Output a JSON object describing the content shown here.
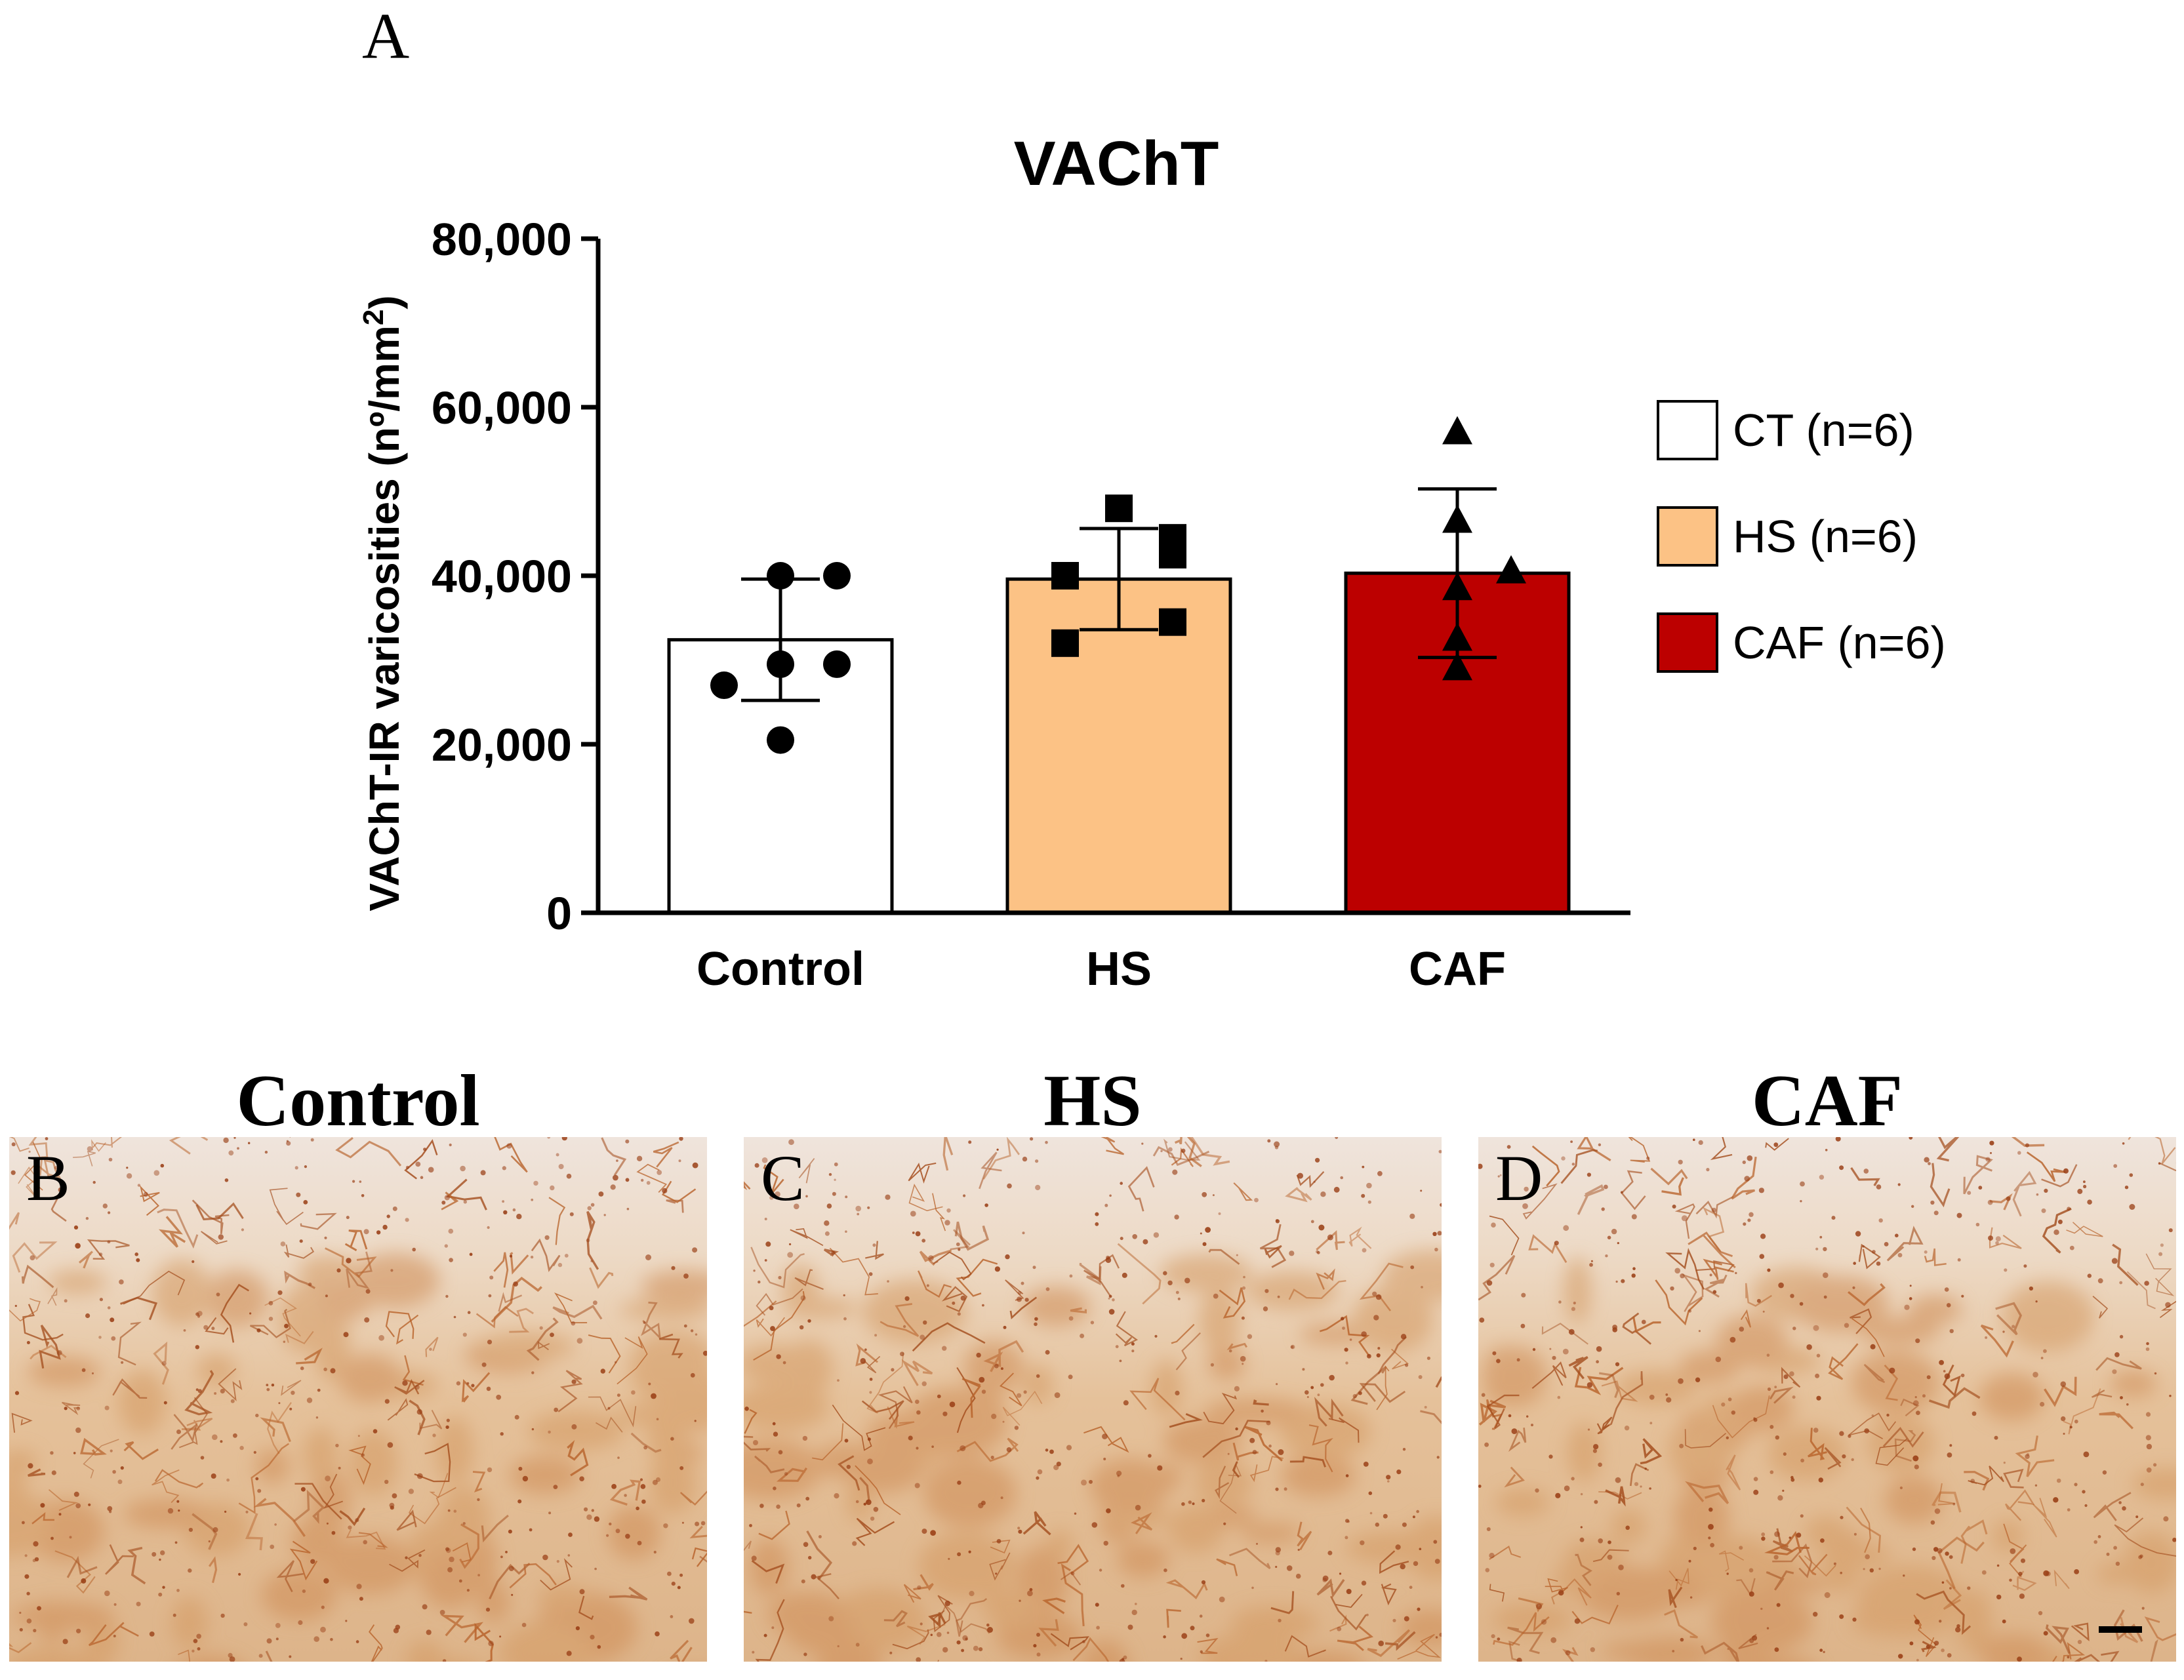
{
  "panel_a": {
    "letter": "A"
  },
  "chart_data": {
    "type": "bar",
    "title": "VAChT",
    "ylabel_main": "VAChT-IR varicosities (nº/mm",
    "ylabel_sup": "2",
    "ylabel_close": ")",
    "xlabel": "",
    "ylim": [
      0,
      80000
    ],
    "yticks": [
      0,
      20000,
      40000,
      60000,
      80000
    ],
    "ytick_labels": [
      "0",
      "20,000",
      "40,000",
      "60,000",
      "80,000"
    ],
    "categories": [
      "Control",
      "HS",
      "CAF"
    ],
    "values": [
      32400,
      39600,
      40300
    ],
    "error": [
      7200,
      6000,
      10000
    ],
    "points": [
      [
        20500,
        27000,
        29500,
        29500,
        40000,
        40000
      ],
      [
        32000,
        34500,
        40000,
        42500,
        44500,
        48000
      ],
      [
        29000,
        32500,
        38500,
        40500,
        46500,
        57000
      ]
    ],
    "markers": [
      "circle",
      "square",
      "triangle"
    ],
    "colors": [
      "#ffffff",
      "#fcc285",
      "#bc0000"
    ],
    "legend": [
      "CT (n=6)",
      "HS (n=6)",
      "CAF (n=6)"
    ],
    "legend_position": "right",
    "grid": false
  },
  "micrographs": [
    {
      "title": "Control",
      "letter": "B"
    },
    {
      "title": "HS",
      "letter": "C"
    },
    {
      "title": "CAF",
      "letter": "D"
    }
  ]
}
